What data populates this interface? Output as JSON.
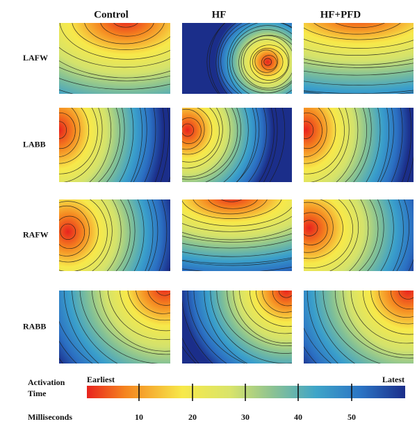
{
  "column_headers": [
    "Control",
    "HF",
    "HF+PFD"
  ],
  "row_labels": [
    "LAFW",
    "LABB",
    "RAFW",
    "RABB"
  ],
  "colorbar": {
    "title_lines": [
      "Activation",
      "Time"
    ],
    "start_label": "Earliest",
    "end_label": "Latest",
    "unit_label": "Milliseconds",
    "ticks": [
      10,
      20,
      30,
      40,
      50
    ]
  }
}
